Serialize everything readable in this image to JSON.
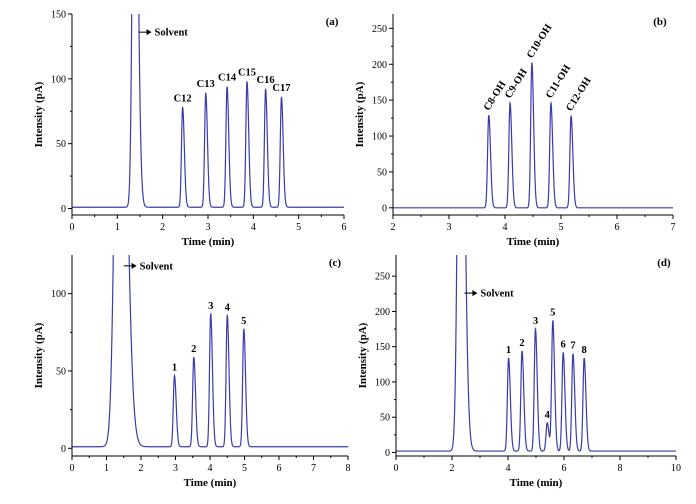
{
  "chart_data": [
    {
      "type": "line",
      "panel_label": "(a)",
      "xlabel": "Time (min)",
      "ylabel": "Intensity (pA)",
      "xlim": [
        0,
        6
      ],
      "ylim": [
        -5,
        150
      ],
      "x_ticks": [
        0,
        1,
        2,
        3,
        4,
        5,
        6
      ],
      "y_ticks": [
        0,
        50,
        100,
        150
      ],
      "baseline": 1,
      "solvent": {
        "label": "Solvent",
        "time": 1.38,
        "height": 400,
        "width": 0.045,
        "arrow_y": 136
      },
      "peaks": [
        {
          "label": "C12",
          "time": 2.44,
          "height": 77
        },
        {
          "label": "C13",
          "time": 2.95,
          "height": 88
        },
        {
          "label": "C14",
          "time": 3.42,
          "height": 93
        },
        {
          "label": "C15",
          "time": 3.86,
          "height": 97
        },
        {
          "label": "C16",
          "time": 4.27,
          "height": 91
        },
        {
          "label": "C17",
          "time": 4.62,
          "height": 85
        }
      ]
    },
    {
      "type": "line",
      "panel_label": "(b)",
      "xlabel": "Time (min)",
      "ylabel": "Intensity (pA)",
      "xlim": [
        2,
        7
      ],
      "ylim": [
        -10,
        270
      ],
      "x_ticks": [
        2,
        3,
        4,
        5,
        6,
        7
      ],
      "y_ticks": [
        0,
        50,
        100,
        150,
        200,
        250
      ],
      "baseline": 0,
      "peaks": [
        {
          "label": "C8-OH",
          "time": 3.71,
          "height": 129
        },
        {
          "label": "C9-OH",
          "time": 4.09,
          "height": 146
        },
        {
          "label": "C10-OH",
          "time": 4.48,
          "height": 202
        },
        {
          "label": "C11-OH",
          "time": 4.82,
          "height": 146
        },
        {
          "label": "C12-OH",
          "time": 5.18,
          "height": 128
        }
      ]
    },
    {
      "type": "line",
      "panel_label": "(c)",
      "xlabel": "Time (min)",
      "ylabel": "Intensity (pA)",
      "xlim": [
        0,
        8
      ],
      "ylim": [
        -5,
        125
      ],
      "x_ticks": [
        0,
        1,
        2,
        3,
        4,
        5,
        6,
        7,
        8
      ],
      "y_ticks": [
        0,
        50,
        100
      ],
      "baseline": 1,
      "solvent": {
        "label": "Solvent",
        "time": 1.38,
        "height": 400,
        "width": 0.12,
        "arrow_y": 118
      },
      "peaks": [
        {
          "label": "1",
          "time": 2.97,
          "height": 46
        },
        {
          "label": "2",
          "time": 3.53,
          "height": 58
        },
        {
          "label": "3",
          "time": 4.02,
          "height": 86
        },
        {
          "label": "4",
          "time": 4.5,
          "height": 85
        },
        {
          "label": "5",
          "time": 4.98,
          "height": 76
        }
      ]
    },
    {
      "type": "line",
      "panel_label": "(d)",
      "xlabel": "Time (min)",
      "ylabel": "Intensity (pA)",
      "xlim": [
        0,
        10
      ],
      "ylim": [
        -5,
        280
      ],
      "x_ticks": [
        0,
        2,
        4,
        6,
        8,
        10
      ],
      "y_ticks": [
        0,
        50,
        100,
        150,
        200,
        250
      ],
      "baseline": 2,
      "solvent": {
        "label": "Solvent",
        "time": 2.3,
        "height": 800,
        "width": 0.09,
        "arrow_y": 226
      },
      "peaks": [
        {
          "label": "1",
          "time": 4.02,
          "height": 132
        },
        {
          "label": "2",
          "time": 4.5,
          "height": 142
        },
        {
          "label": "3",
          "time": 4.98,
          "height": 173
        },
        {
          "label": "4",
          "time": 5.4,
          "height": 40
        },
        {
          "label": "5",
          "time": 5.6,
          "height": 185
        },
        {
          "label": "6",
          "time": 5.97,
          "height": 140
        },
        {
          "label": "7",
          "time": 6.32,
          "height": 138
        },
        {
          "label": "8",
          "time": 6.72,
          "height": 132
        }
      ]
    }
  ]
}
